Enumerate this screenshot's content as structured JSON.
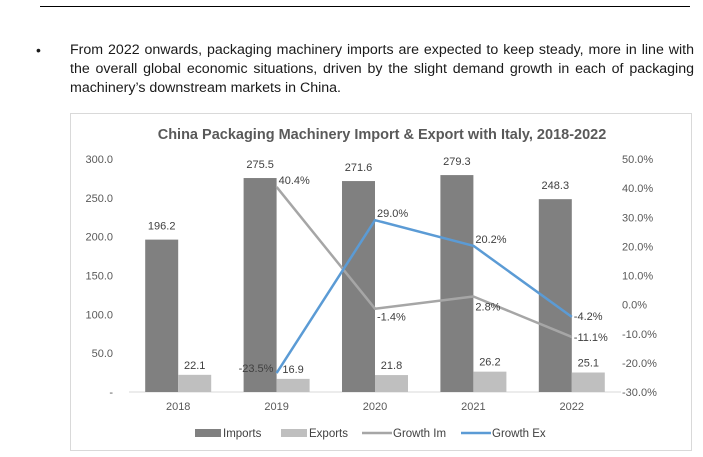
{
  "bullet": {
    "symbol": "•",
    "text": "From 2022 onwards, packaging machinery imports are expected to keep steady, more in line with the overall global economic situations, driven by the slight demand growth in each of packaging machinery’s downstream markets in China."
  },
  "colors": {
    "imports": "#808080",
    "exports": "#bfbfbf",
    "growth_im": "#a6a6a6",
    "growth_ex": "#5b9bd5"
  },
  "chart_data": {
    "type": "bar",
    "title": "China Packaging Machinery Import & Export with Italy, 2018-2022",
    "categories": [
      "2018",
      "2019",
      "2020",
      "2021",
      "2022"
    ],
    "series": [
      {
        "name": "Imports",
        "type": "bar",
        "axis": "left",
        "values": [
          196.2,
          275.5,
          271.6,
          279.3,
          248.3
        ],
        "labels": [
          "196.2",
          "275.5",
          "271.6",
          "279.3",
          "248.3"
        ]
      },
      {
        "name": "Exports",
        "type": "bar",
        "axis": "left",
        "values": [
          22.1,
          16.9,
          21.8,
          26.2,
          25.1
        ],
        "labels": [
          "22.1",
          "16.9",
          "21.8",
          "26.2",
          "25.1"
        ]
      },
      {
        "name": "Growth Im",
        "type": "line",
        "axis": "right",
        "values": [
          null,
          40.4,
          -1.4,
          2.8,
          -11.1
        ],
        "labels": [
          "",
          "40.4%",
          "-1.4%",
          "2.8%",
          "-11.1%"
        ]
      },
      {
        "name": "Growth Ex",
        "type": "line",
        "axis": "right",
        "values": [
          null,
          -23.5,
          29.0,
          20.2,
          -4.2
        ],
        "labels": [
          "",
          "-23.5%",
          "29.0%",
          "20.2%",
          "-4.2%"
        ]
      }
    ],
    "ylim": [
      0,
      300
    ],
    "y_ticks": [
      "300.0",
      "250.0",
      "200.0",
      "150.0",
      "100.0",
      "50.0",
      "-"
    ],
    "y2lim": [
      -30,
      50
    ],
    "y2_ticks": [
      "50.0%",
      "40.0%",
      "30.0%",
      "20.0%",
      "10.0%",
      "0.0%",
      "-10.0%",
      "-20.0%",
      "-30.0%"
    ],
    "grid": false,
    "legend_position": "bottom"
  }
}
